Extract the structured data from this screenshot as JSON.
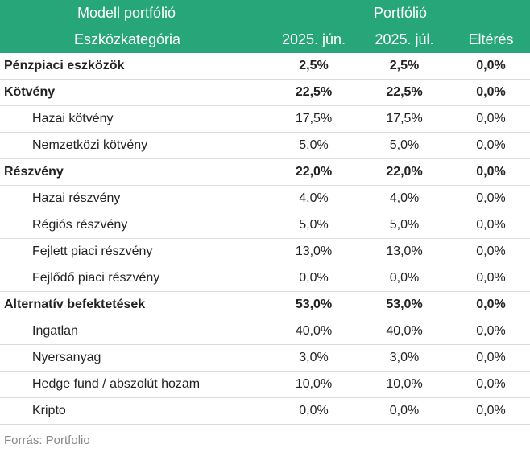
{
  "header": {
    "model_label": "Modell portfólió",
    "portfolio_label": "Portfólió",
    "category_label": "Eszközkategória",
    "col_jun": "2025. jún.",
    "col_jul": "2025. júl.",
    "col_diff": "Eltérés"
  },
  "rows": [
    {
      "label": "Pénzpiaci eszközök",
      "jun": "2,5%",
      "jul": "2,5%",
      "diff": "0,0%"
    },
    {
      "label": "Kötvény",
      "jun": "22,5%",
      "jul": "22,5%",
      "diff": "0,0%"
    },
    {
      "label": "Hazai kötvény",
      "jun": "17,5%",
      "jul": "17,5%",
      "diff": "0,0%"
    },
    {
      "label": "Nemzetközi kötvény",
      "jun": "5,0%",
      "jul": "5,0%",
      "diff": "0,0%"
    },
    {
      "label": "Részvény",
      "jun": "22,0%",
      "jul": "22,0%",
      "diff": "0,0%"
    },
    {
      "label": "Hazai részvény",
      "jun": "4,0%",
      "jul": "4,0%",
      "diff": "0,0%"
    },
    {
      "label": "Régiós részvény",
      "jun": "5,0%",
      "jul": "5,0%",
      "diff": "0,0%"
    },
    {
      "label": "Fejlett piaci részvény",
      "jun": "13,0%",
      "jul": "13,0%",
      "diff": "0,0%"
    },
    {
      "label": "Fejlődő piaci részvény",
      "jun": "0,0%",
      "jul": "0,0%",
      "diff": "0,0%"
    },
    {
      "label": "Alternatív befektetések",
      "jun": "53,0%",
      "jul": "53,0%",
      "diff": "0,0%"
    },
    {
      "label": "Ingatlan",
      "jun": "40,0%",
      "jul": "40,0%",
      "diff": "0,0%"
    },
    {
      "label": "Nyersanyag",
      "jun": "3,0%",
      "jul": "3,0%",
      "diff": "0,0%"
    },
    {
      "label": "Hedge fund / abszolút hozam",
      "jun": "10,0%",
      "jul": "10,0%",
      "diff": "0,0%"
    },
    {
      "label": "Kripto",
      "jun": "0,0%",
      "jul": "0,0%",
      "diff": "0,0%"
    }
  ],
  "source": "Forrás: Portfolio",
  "colors": {
    "header_bg": "#27a67a",
    "header_text": "#ffffff",
    "source_text": "#888888"
  }
}
